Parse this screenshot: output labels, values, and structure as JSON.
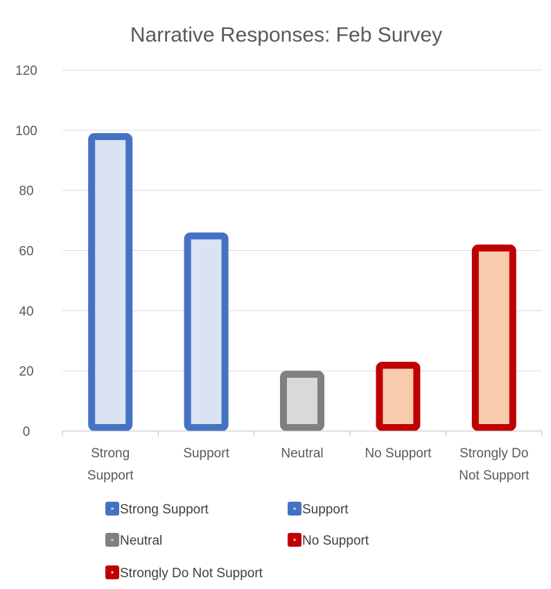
{
  "chart_data": {
    "type": "bar",
    "title": "Narrative Responses: Feb Survey",
    "xlabel": "",
    "ylabel": "",
    "categories": [
      [
        "Strong",
        "Support"
      ],
      [
        "Support"
      ],
      [
        "Neutral"
      ],
      [
        "No Support"
      ],
      [
        "Strongly Do",
        "Not Support"
      ]
    ],
    "values": [
      99,
      66,
      20,
      23,
      62
    ],
    "ylim": [
      0,
      120
    ],
    "yticks": [
      0,
      20,
      40,
      60,
      80,
      100,
      120
    ],
    "grid": true,
    "legend_position": "bottom",
    "series": [
      {
        "name": "Strong Support",
        "border": "#4472C4",
        "fill": "#DAE3F3"
      },
      {
        "name": "Support",
        "border": "#4472C4",
        "fill": "#DAE3F3"
      },
      {
        "name": "Neutral",
        "border": "#808080",
        "fill": "#D9D9D9"
      },
      {
        "name": "No Support",
        "border": "#C00000",
        "fill": "#F8CBAD"
      },
      {
        "name": "Strongly Do Not Support",
        "border": "#C00000",
        "fill": "#F8CBAD"
      }
    ]
  },
  "colors": {
    "grid": "#D9D9D9",
    "axis": "#BFBFBF",
    "text": "#595959"
  }
}
